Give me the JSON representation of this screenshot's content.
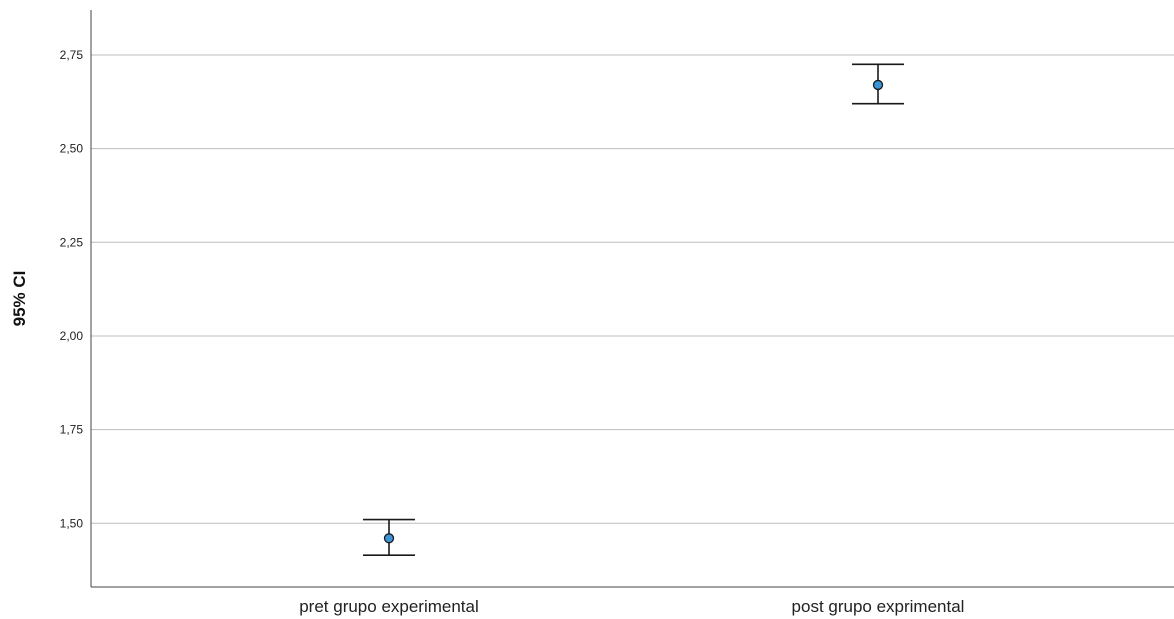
{
  "chart_data": {
    "type": "errorbar",
    "title": "",
    "xlabel": "",
    "ylabel": "95% CI",
    "categories": [
      "pret grupo experimental",
      "post grupo exprimental"
    ],
    "series": [
      {
        "mean": [
          1.46,
          2.67
        ],
        "lower": [
          1.415,
          2.62
        ],
        "upper": [
          1.51,
          2.725
        ]
      }
    ],
    "ylim": [
      1.33,
      2.87
    ],
    "yticks": [
      1.5,
      1.75,
      2.0,
      2.25,
      2.5,
      2.75
    ],
    "ytick_labels": [
      "1,50",
      "1,75",
      "2,00",
      "2,25",
      "2,50",
      "2,75"
    ],
    "grid": "horizontal",
    "legend": "none",
    "colors": {
      "marker_fill": "#3b95d6",
      "marker_stroke": "#1a1a1a",
      "errorbar": "#1a1a1a",
      "grid": "#bdbdbd",
      "axis": "#444444"
    }
  }
}
